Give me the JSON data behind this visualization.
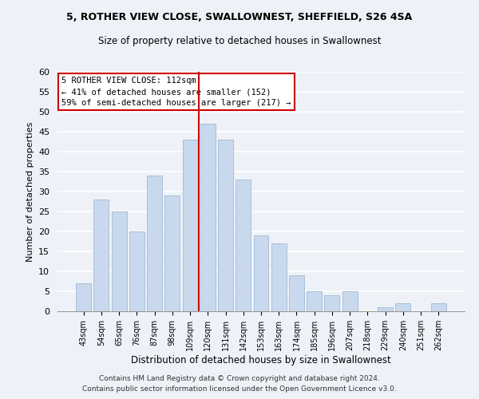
{
  "title_line1": "5, ROTHER VIEW CLOSE, SWALLOWNEST, SHEFFIELD, S26 4SA",
  "title_line2": "Size of property relative to detached houses in Swallownest",
  "xlabel": "Distribution of detached houses by size in Swallownest",
  "ylabel": "Number of detached properties",
  "bin_labels": [
    "43sqm",
    "54sqm",
    "65sqm",
    "76sqm",
    "87sqm",
    "98sqm",
    "109sqm",
    "120sqm",
    "131sqm",
    "142sqm",
    "153sqm",
    "163sqm",
    "174sqm",
    "185sqm",
    "196sqm",
    "207sqm",
    "218sqm",
    "229sqm",
    "240sqm",
    "251sqm",
    "262sqm"
  ],
  "bar_heights": [
    7,
    28,
    25,
    20,
    34,
    29,
    43,
    47,
    43,
    33,
    19,
    17,
    9,
    5,
    4,
    5,
    0,
    1,
    2,
    0,
    2
  ],
  "bar_color": "#c8d9ee",
  "bar_edgecolor": "#a8bfd8",
  "vline_color": "#cc0000",
  "annotation_line1": "5 ROTHER VIEW CLOSE: 112sqm",
  "annotation_line2": "← 41% of detached houses are smaller (152)",
  "annotation_line3": "59% of semi-detached houses are larger (217) →",
  "box_facecolor": "white",
  "box_edgecolor": "#cc0000",
  "ylim": [
    0,
    60
  ],
  "yticks": [
    0,
    5,
    10,
    15,
    20,
    25,
    30,
    35,
    40,
    45,
    50,
    55,
    60
  ],
  "footer_line1": "Contains HM Land Registry data © Crown copyright and database right 2024.",
  "footer_line2": "Contains public sector information licensed under the Open Government Licence v3.0.",
  "bg_color": "#eef2f8",
  "plot_bg_color": "#eef2f8"
}
